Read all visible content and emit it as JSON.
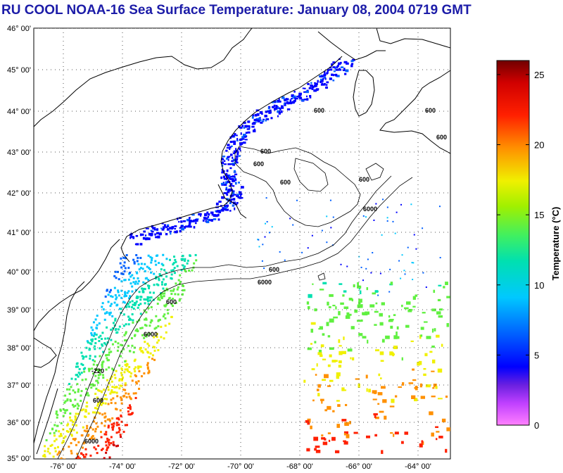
{
  "title": "RU COOL  NOAA-16  Sea Surface Temperature:  January 08, 2004 0719 GMT",
  "map": {
    "lat_labels": [
      "46° 00'",
      "45° 00'",
      "44° 00'",
      "43° 00'",
      "42° 00'",
      "41° 00'",
      "40° 00'",
      "39° 00'",
      "38° 00'",
      "37° 00'",
      "36° 00'",
      "35° 00'"
    ],
    "lon_labels": [
      "-76° 00'",
      "-74° 00'",
      "-72° 00'",
      "-70° 00'",
      "-68° 00'",
      "-66° 00'",
      "-64° 00'"
    ],
    "contour_labels": [
      "600",
      "600",
      "600",
      "600",
      "600",
      "600",
      "600",
      "6000",
      "6000",
      "600",
      "6000",
      "600",
      "600",
      "-220",
      "6000"
    ]
  },
  "colorbar": {
    "title": "Temperature (°C)",
    "ticks": [
      "25",
      "20",
      "15",
      "10",
      "5",
      "0"
    ],
    "tick_values": [
      25,
      20,
      15,
      10,
      5,
      0
    ],
    "range": [
      0,
      26
    ]
  },
  "colors": {
    "title": "#1c1ca8",
    "land_outline": "#000000",
    "grid": "#555555"
  }
}
